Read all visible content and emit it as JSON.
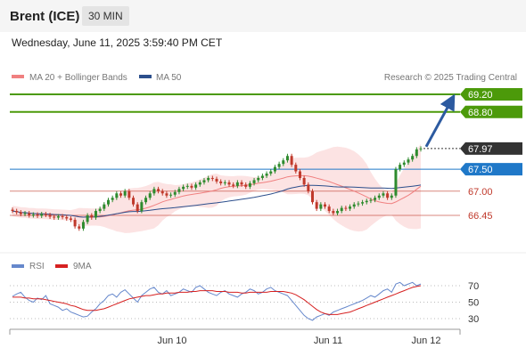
{
  "header": {
    "instrument": "Brent (ICE)",
    "timeframe": "30 MIN",
    "datetime": "Wednesday, June 11, 2025 3:59:40 PM CET"
  },
  "chart_data": {
    "type": "candlestick",
    "legend": {
      "placement": "top-left",
      "items": [
        {
          "name": "MA 20 + Bollinger Bands",
          "color": "#f08080"
        },
        {
          "name": "MA 50",
          "color": "#2c4f8c"
        }
      ]
    },
    "credit": "Research © 2025 Trading Central",
    "price_axis": {
      "min": 65.5,
      "max": 69.5
    },
    "current_price": {
      "label": "67.97",
      "value": 67.97,
      "color": "#333333"
    },
    "levels": [
      {
        "label": "69.20",
        "value": 69.2,
        "kind": "target",
        "color": "#4c9a0a"
      },
      {
        "label": "68.80",
        "value": 68.8,
        "kind": "target",
        "color": "#4c9a0a"
      },
      {
        "label": "67.50",
        "value": 67.5,
        "kind": "pivot",
        "color": "#1f78c8"
      },
      {
        "label": "67.00",
        "value": 67.0,
        "kind": "support",
        "color": "#c0392b"
      },
      {
        "label": "66.45",
        "value": 66.45,
        "kind": "support",
        "color": "#c0392b"
      }
    ],
    "arrow": {
      "direction": "up",
      "from_value": 67.97,
      "to_value": 69.05,
      "color": "#2c5aa0"
    },
    "x_axis": {
      "ticks": [
        "Jun 10",
        "Jun 11",
        "Jun 12"
      ]
    },
    "candles": [
      66.55,
      66.52,
      66.48,
      66.5,
      66.45,
      66.47,
      66.44,
      66.48,
      66.46,
      66.42,
      66.4,
      66.43,
      66.41,
      66.38,
      66.35,
      66.2,
      66.15,
      66.3,
      66.45,
      66.4,
      66.55,
      66.6,
      66.7,
      66.8,
      66.85,
      66.95,
      66.9,
      67.0,
      66.85,
      66.7,
      66.55,
      66.75,
      66.85,
      66.95,
      67.05,
      67.0,
      66.95,
      66.9,
      66.92,
      66.98,
      67.05,
      67.1,
      67.12,
      67.08,
      67.15,
      67.2,
      67.25,
      67.3,
      67.28,
      67.22,
      67.18,
      67.2,
      67.15,
      67.12,
      67.2,
      67.15,
      67.1,
      67.18,
      67.25,
      67.3,
      67.35,
      67.4,
      67.45,
      67.55,
      67.62,
      67.7,
      67.8,
      67.6,
      67.45,
      67.3,
      67.15,
      67.0,
      66.75,
      66.6,
      66.7,
      66.65,
      66.55,
      66.5,
      66.55,
      66.62,
      66.6,
      66.65,
      66.7,
      66.72,
      66.75,
      66.78,
      66.8,
      66.85,
      66.9,
      66.95,
      66.85,
      66.9,
      67.5,
      67.6,
      67.65,
      67.72,
      67.8,
      67.95,
      67.97
    ],
    "rsi_panel": {
      "legend": [
        {
          "name": "RSI",
          "color": "#6688cc"
        },
        {
          "name": "9MA",
          "color": "#d62020"
        }
      ],
      "ticks": [
        70,
        50,
        30
      ],
      "range": [
        20,
        80
      ],
      "rsi": [
        57,
        60,
        62,
        56,
        52,
        50,
        55,
        53,
        58,
        48,
        46,
        44,
        40,
        42,
        38,
        36,
        34,
        32,
        33,
        38,
        42,
        48,
        52,
        58,
        60,
        56,
        62,
        65,
        60,
        55,
        50,
        58,
        62,
        66,
        68,
        62,
        60,
        64,
        58,
        60,
        62,
        66,
        64,
        62,
        68,
        70,
        66,
        62,
        60,
        58,
        62,
        64,
        60,
        58,
        56,
        60,
        62,
        66,
        64,
        60,
        62,
        66,
        68,
        64,
        62,
        60,
        58,
        52,
        46,
        40,
        34,
        30,
        28,
        32,
        34,
        36,
        34,
        38,
        40,
        42,
        44,
        46,
        48,
        50,
        52,
        55,
        58,
        56,
        60,
        64,
        66,
        62,
        72,
        74,
        70,
        72,
        74,
        70,
        72
      ],
      "ma9": [
        56,
        56,
        56,
        55,
        55,
        54,
        54,
        54,
        53,
        52,
        51,
        50,
        49,
        48,
        46,
        45,
        43,
        41,
        40,
        40,
        40,
        41,
        42,
        44,
        46,
        48,
        50,
        52,
        54,
        55,
        56,
        57,
        58,
        58,
        59,
        60,
        60,
        61,
        61,
        61,
        62,
        62,
        62,
        63,
        63,
        64,
        64,
        64,
        64,
        63,
        63,
        63,
        62,
        62,
        62,
        61,
        61,
        62,
        62,
        62,
        62,
        62,
        63,
        63,
        63,
        63,
        62,
        61,
        59,
        56,
        53,
        49,
        45,
        41,
        38,
        36,
        35,
        35,
        35,
        36,
        37,
        38,
        40,
        42,
        44,
        46,
        48,
        50,
        52,
        54,
        56,
        58,
        60,
        62,
        64,
        66,
        68,
        69,
        70
      ]
    }
  }
}
